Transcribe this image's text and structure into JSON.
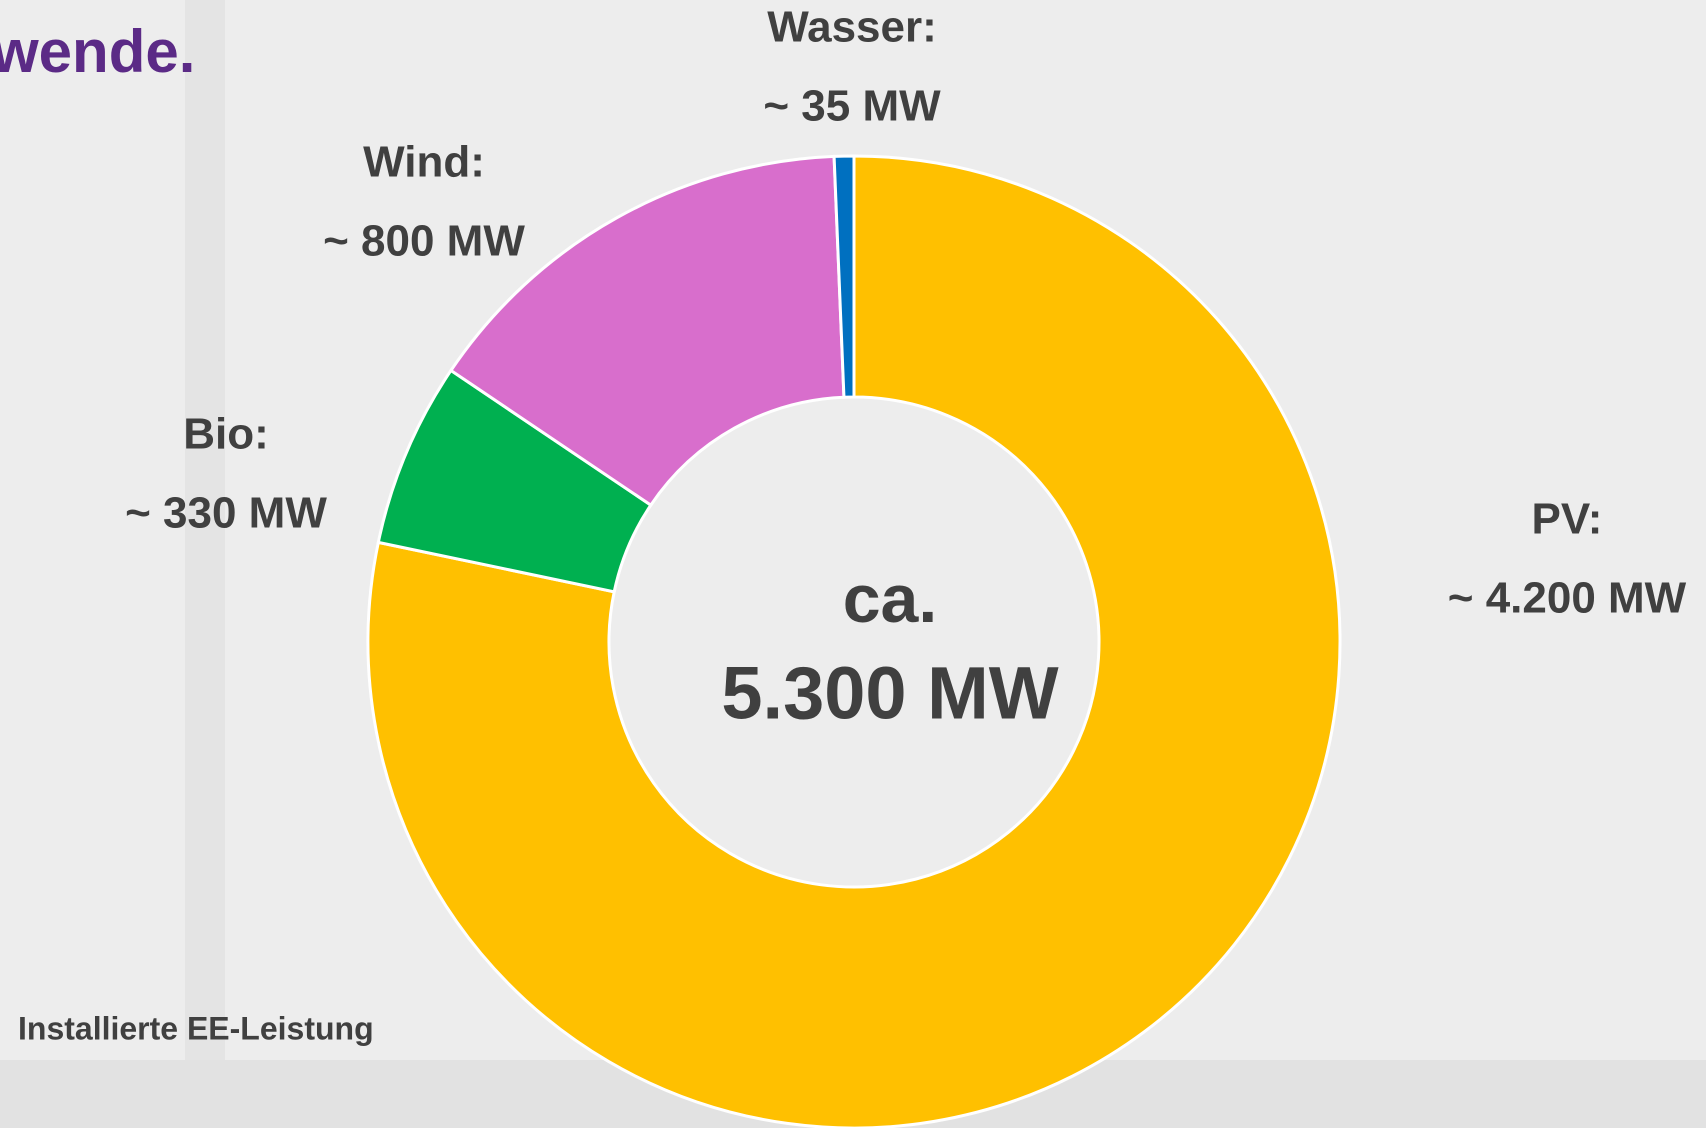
{
  "chart_data": {
    "type": "donut",
    "title": "wende.",
    "categories": [
      "PV:",
      "Bio:",
      "Wind:",
      "Wasser:"
    ],
    "values": [
      4200,
      330,
      800,
      35
    ],
    "value_labels": [
      "~ 4.200 MW",
      "~ 330 MW",
      "~ 800 MW",
      "~ 35 MW"
    ],
    "colors": [
      "#ffc000",
      "#00b050",
      "#d86ecc",
      "#0070c0"
    ],
    "center_label": [
      "ca.",
      "5.300 MW"
    ],
    "footnote": "Installierte EE-Leistung"
  }
}
